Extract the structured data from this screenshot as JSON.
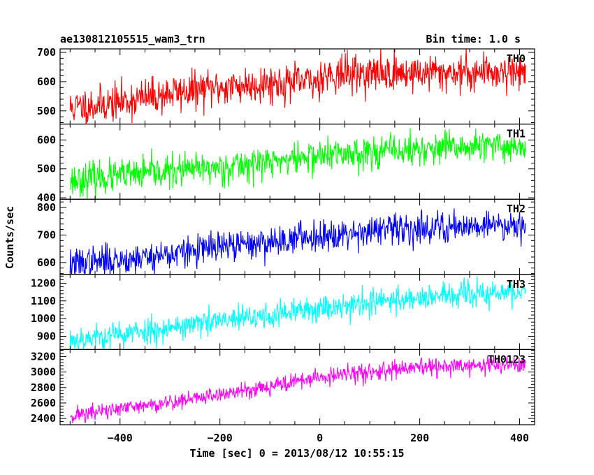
{
  "header": {
    "title": "ae130812105515_wam3_trn",
    "bin_time": "Bin time: 1.0 s"
  },
  "chart_data": {
    "type": "line",
    "xlabel": "Time [sec] 0 = 2013/08/12 10:55:15",
    "ylabel": "Counts/sec",
    "xlim": [
      -520,
      430
    ],
    "x_range": [
      -500,
      412
    ],
    "x_ticks": [
      -400,
      -200,
      0,
      200,
      400
    ],
    "x_tick_labels": [
      "−400",
      "−200",
      "0",
      "200",
      "400"
    ],
    "bin_time_s": 1.0,
    "grid": false,
    "panels": [
      {
        "name": "TH0",
        "color": "#ff0000",
        "ylim": [
          455,
          712
        ],
        "y_ticks": [
          500,
          600,
          700
        ],
        "y_tick_labels": [
          "500",
          "600",
          "700"
        ],
        "trend": [
          [
            -500,
            510
          ],
          [
            -400,
            530
          ],
          [
            -300,
            560
          ],
          [
            -200,
            580
          ],
          [
            -100,
            595
          ],
          [
            -1,
            600
          ],
          [
            0,
            625
          ],
          [
            100,
            628
          ],
          [
            200,
            630
          ],
          [
            300,
            632
          ],
          [
            412,
            638
          ]
        ],
        "noise_sd": 32,
        "seed": 11
      },
      {
        "name": "TH1",
        "color": "#00ff00",
        "ylim": [
          395,
          655
        ],
        "y_ticks": [
          400,
          500,
          600
        ],
        "y_tick_labels": [
          "400",
          "500",
          "600"
        ],
        "trend": [
          [
            -500,
            460
          ],
          [
            -400,
            475
          ],
          [
            -300,
            490
          ],
          [
            -200,
            505
          ],
          [
            -100,
            525
          ],
          [
            0,
            545
          ],
          [
            100,
            560
          ],
          [
            200,
            565
          ],
          [
            300,
            575
          ],
          [
            412,
            580
          ]
        ],
        "noise_sd": 28,
        "seed": 23
      },
      {
        "name": "TH2",
        "color": "#0000ff",
        "ylim": [
          557,
          830
        ],
        "y_ticks": [
          600,
          700,
          800
        ],
        "y_tick_labels": [
          "600",
          "700",
          "800"
        ],
        "trend": [
          [
            -500,
            595
          ],
          [
            -400,
            610
          ],
          [
            -300,
            630
          ],
          [
            -200,
            655
          ],
          [
            -100,
            675
          ],
          [
            0,
            700
          ],
          [
            100,
            715
          ],
          [
            200,
            725
          ],
          [
            300,
            735
          ],
          [
            412,
            740
          ]
        ],
        "noise_sd": 28,
        "seed": 37
      },
      {
        "name": "TH3",
        "color": "#00ffff",
        "ylim": [
          825,
          1250
        ],
        "y_ticks": [
          900,
          1000,
          1100,
          1200
        ],
        "y_tick_labels": [
          "900",
          "1000",
          "1100",
          "1200"
        ],
        "trend": [
          [
            -500,
            880
          ],
          [
            -400,
            910
          ],
          [
            -300,
            950
          ],
          [
            -200,
            985
          ],
          [
            -100,
            1015
          ],
          [
            0,
            1060
          ],
          [
            100,
            1090
          ],
          [
            200,
            1120
          ],
          [
            300,
            1135
          ],
          [
            412,
            1150
          ]
        ],
        "noise_sd": 38,
        "seed": 53
      },
      {
        "name": "TH0123",
        "color": "#ff00ff",
        "ylim": [
          2320,
          3290
        ],
        "y_ticks": [
          2400,
          2600,
          2800,
          3000,
          3200
        ],
        "y_tick_labels": [
          "2400",
          "2600",
          "2800",
          "3000",
          "3200"
        ],
        "trend": [
          [
            -500,
            2440
          ],
          [
            -400,
            2520
          ],
          [
            -300,
            2610
          ],
          [
            -200,
            2710
          ],
          [
            -100,
            2820
          ],
          [
            0,
            2930
          ],
          [
            100,
            3000
          ],
          [
            200,
            3050
          ],
          [
            300,
            3080
          ],
          [
            412,
            3100
          ]
        ],
        "noise_sd": 55,
        "seed": 71
      }
    ]
  }
}
